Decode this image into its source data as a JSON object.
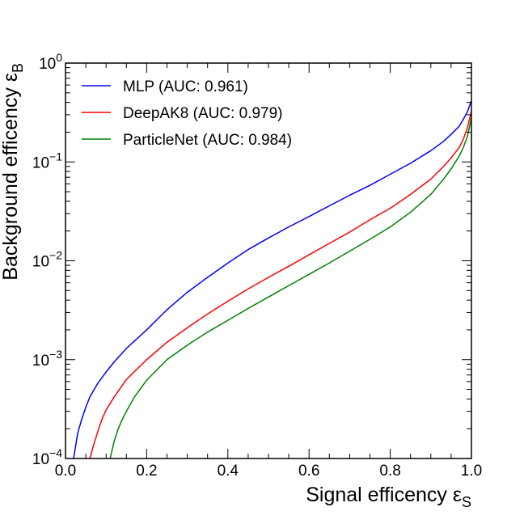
{
  "chart_data": {
    "type": "line",
    "title": "",
    "xlabel": "Signal efficency ε",
    "xlabel_sub": "S",
    "ylabel": "Background efficency ε",
    "ylabel_sub": "B",
    "xlim": [
      0.0,
      1.0
    ],
    "ylim": [
      0.0001,
      1
    ],
    "yscale": "log",
    "grid": false,
    "legend_position": "top-left",
    "x_ticks": [
      {
        "v": 0.0,
        "label": "0.0"
      },
      {
        "v": 0.2,
        "label": "0.2"
      },
      {
        "v": 0.4,
        "label": "0.4"
      },
      {
        "v": 0.6,
        "label": "0.6"
      },
      {
        "v": 0.8,
        "label": "0.8"
      },
      {
        "v": 1.0,
        "label": "1.0"
      }
    ],
    "y_ticks": [
      {
        "v": 0.0001,
        "base": "10",
        "exp": "−4"
      },
      {
        "v": 0.001,
        "base": "10",
        "exp": "−3"
      },
      {
        "v": 0.01,
        "base": "10",
        "exp": "−2"
      },
      {
        "v": 0.1,
        "base": "10",
        "exp": "−1"
      },
      {
        "v": 1,
        "base": "10",
        "exp": "0"
      }
    ],
    "series": [
      {
        "name": "MLP (AUC: 0.961)",
        "color": "#0000ff",
        "x": [
          0.02,
          0.03,
          0.04,
          0.05,
          0.06,
          0.08,
          0.1,
          0.12,
          0.15,
          0.2,
          0.25,
          0.3,
          0.35,
          0.4,
          0.45,
          0.5,
          0.55,
          0.6,
          0.65,
          0.7,
          0.75,
          0.8,
          0.85,
          0.9,
          0.93,
          0.95,
          0.97,
          0.98,
          0.99,
          1.0
        ],
        "y": [
          0.0001,
          0.00018,
          0.00025,
          0.00033,
          0.00042,
          0.00058,
          0.00075,
          0.00095,
          0.0013,
          0.002,
          0.0032,
          0.0048,
          0.0068,
          0.0095,
          0.013,
          0.017,
          0.022,
          0.028,
          0.036,
          0.046,
          0.058,
          0.075,
          0.097,
          0.13,
          0.16,
          0.19,
          0.23,
          0.27,
          0.32,
          0.42
        ]
      },
      {
        "name": "DeepAK8 (AUC: 0.979)",
        "color": "#ff0000",
        "x": [
          0.06,
          0.07,
          0.08,
          0.09,
          0.1,
          0.12,
          0.15,
          0.2,
          0.25,
          0.3,
          0.35,
          0.4,
          0.45,
          0.5,
          0.55,
          0.6,
          0.65,
          0.7,
          0.75,
          0.8,
          0.85,
          0.9,
          0.93,
          0.95,
          0.97,
          0.98,
          0.99,
          1.0
        ],
        "y": [
          0.0001,
          0.00014,
          0.00019,
          0.00025,
          0.00031,
          0.00042,
          0.00063,
          0.001,
          0.0015,
          0.0021,
          0.0029,
          0.0039,
          0.0052,
          0.0068,
          0.0088,
          0.0115,
          0.015,
          0.0195,
          0.026,
          0.034,
          0.047,
          0.067,
          0.089,
          0.11,
          0.14,
          0.17,
          0.22,
          0.33
        ]
      },
      {
        "name": "ParticleNet (AUC: 0.984)",
        "color": "#008000",
        "x": [
          0.11,
          0.12,
          0.13,
          0.14,
          0.15,
          0.17,
          0.2,
          0.25,
          0.3,
          0.35,
          0.4,
          0.45,
          0.5,
          0.55,
          0.6,
          0.65,
          0.7,
          0.75,
          0.8,
          0.85,
          0.9,
          0.93,
          0.95,
          0.97,
          0.98,
          0.99,
          1.0
        ],
        "y": [
          0.0001,
          0.00015,
          0.0002,
          0.00025,
          0.0003,
          0.00042,
          0.00062,
          0.001,
          0.0014,
          0.0019,
          0.0025,
          0.0033,
          0.0043,
          0.0056,
          0.0073,
          0.0095,
          0.0125,
          0.0165,
          0.022,
          0.031,
          0.047,
          0.066,
          0.085,
          0.115,
          0.14,
          0.18,
          0.28
        ]
      }
    ]
  }
}
